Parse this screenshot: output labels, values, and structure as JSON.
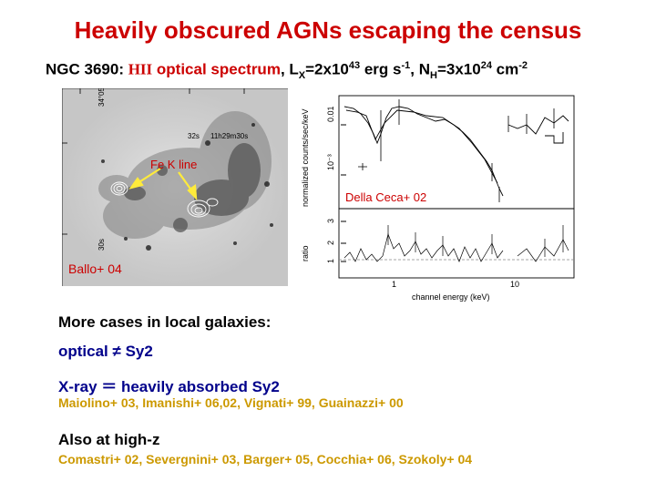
{
  "slide": {
    "title": "Heavily obscured AGNs escaping the census",
    "subtitle": {
      "object": "NGC 3690: ",
      "hii": "HII",
      "optical": " optical spectrum",
      "lx_text": ", L",
      "lx_sub": "X",
      "lx_val": "=2x10",
      "lx_exp": "43",
      "lx_unit": " erg s",
      "lx_unit_exp": "-1",
      "nh_text": ", N",
      "nh_sub": "H",
      "nh_val": "=3x10",
      "nh_exp": "24",
      "nh_unit": " cm",
      "nh_unit_exp": "-2"
    },
    "figure_labels": {
      "fek_line": "Fe K line",
      "della_ceca": "Della Ceca+ 02",
      "ballo": "Ballo+ 04"
    },
    "image_axis_labels": {
      "dec_top": "34°05",
      "dec_bottom": "30s",
      "ra_left": "32s",
      "ra_right": "11h29m30s"
    },
    "spectrum_axes": {
      "ylabel_top": "normalized counts/sec/keV",
      "ylabel_bottom": "ratio",
      "xlabel": "channel energy (keV)",
      "top_ticks": [
        "0.01",
        "10⁻³"
      ],
      "bottom_ticks": [
        "3",
        "2",
        "1"
      ],
      "x_ticks": [
        "1",
        "10"
      ]
    },
    "text": {
      "more_cases": "More cases in local galaxies:",
      "optical_label": "optical ",
      "optical_symbol": "≠",
      "optical_value": " Sy2",
      "xray_label": "X-ray ",
      "xray_symbol": "＝",
      "xray_value": " heavily absorbed Sy2",
      "local_refs": "Maiolino+ 03, Imanishi+ 06,02, Vignati+ 99, Guainazzi+ 00",
      "high_z": "Also at high-z",
      "highz_refs": "Comastri+ 02, Severgnini+ 03, Barger+ 05, Cocchia+ 06, Szokoly+ 04"
    }
  }
}
